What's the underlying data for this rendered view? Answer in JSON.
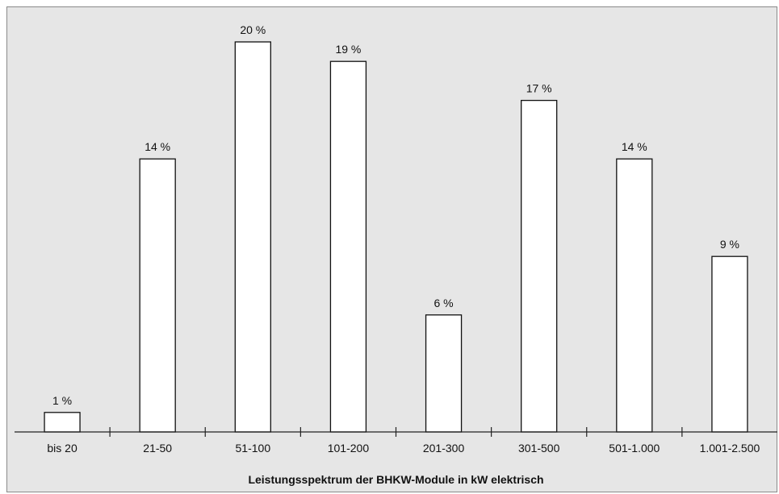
{
  "chart_data": {
    "type": "bar",
    "categories": [
      "bis 20",
      "21-50",
      "51-100",
      "101-200",
      "201-300",
      "301-500",
      "501-1.000",
      "1.001-2.500"
    ],
    "values": [
      1,
      14,
      20,
      19,
      6,
      17,
      14,
      9
    ],
    "value_unit": "%",
    "data_labels": [
      "1 %",
      "14 %",
      "20 %",
      "19 %",
      "6 %",
      "17 %",
      "14 %",
      "9 %"
    ],
    "xlabel": "Leistungsspektrum der BHKW-Module in kW elektrisch",
    "ylabel": "",
    "ylim": [
      0,
      20
    ],
    "grid": false,
    "legend": "none",
    "colors": {
      "background": "#e6e6e6",
      "bar_fill": "#ffffff",
      "bar_stroke": "#111111",
      "border": "#8a8a8a"
    }
  }
}
